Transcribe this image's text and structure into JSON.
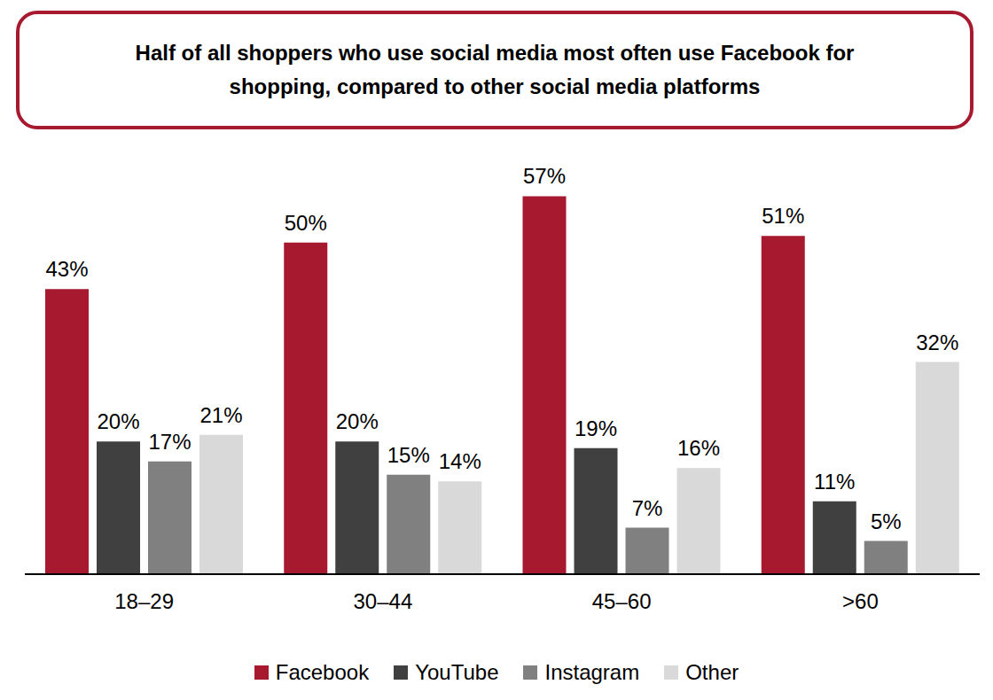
{
  "chart_data": {
    "type": "bar",
    "title": "Half of all shoppers who use social media most often use Facebook for shopping, compared to other social media platforms",
    "categories": [
      "18–29",
      "30–44",
      "45–60",
      ">60"
    ],
    "series": [
      {
        "name": "Facebook",
        "color": "#A6192E",
        "values": [
          43,
          50,
          57,
          51
        ],
        "value_labels": [
          "43%",
          "50%",
          "57%",
          "51%"
        ]
      },
      {
        "name": "YouTube",
        "color": "#404040",
        "values": [
          20,
          20,
          19,
          11
        ],
        "value_labels": [
          "20%",
          "20%",
          "19%",
          "11%"
        ]
      },
      {
        "name": "Instagram",
        "color": "#808080",
        "values": [
          17,
          15,
          7,
          5
        ],
        "value_labels": [
          "17%",
          "15%",
          "7%",
          "5%"
        ]
      },
      {
        "name": "Other",
        "color": "#D9D9D9",
        "values": [
          21,
          14,
          16,
          32
        ],
        "value_labels": [
          "21%",
          "14%",
          "16%",
          "32%"
        ]
      }
    ],
    "ylim": [
      0,
      60
    ],
    "data_labels": true,
    "tick_labels": "x",
    "legend": "bottom",
    "grid": false
  }
}
